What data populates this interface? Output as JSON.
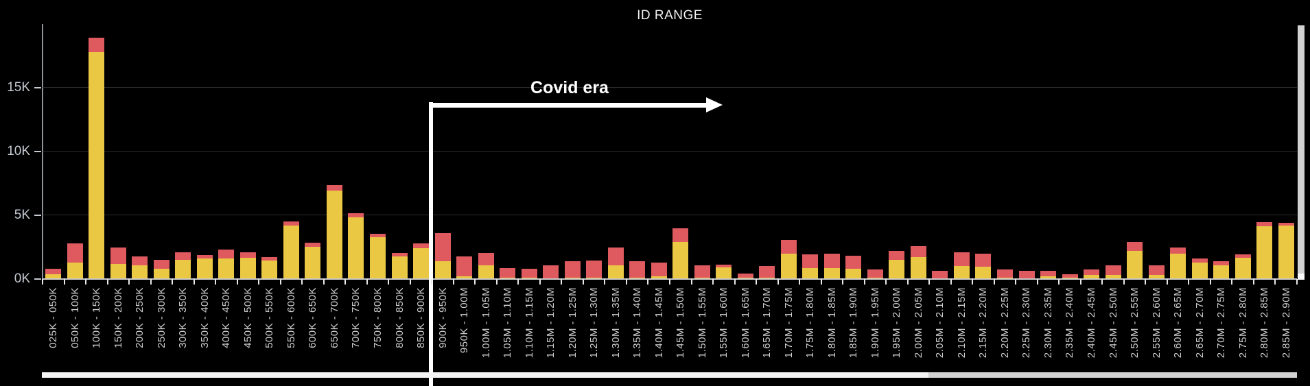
{
  "title": "ID RANGE",
  "annotation": {
    "label": "Covid era",
    "starts_at_category": "900K - 950K"
  },
  "y_axis": {
    "ticks": [
      {
        "label": "0K",
        "value": 0
      },
      {
        "label": "5K",
        "value": 5000
      },
      {
        "label": "10K",
        "value": 10000
      },
      {
        "label": "15K",
        "value": 15000
      }
    ]
  },
  "colors": {
    "background": "#000000",
    "bar_yellow": "#ebc844",
    "bar_red": "#df5a5f",
    "gridline": "#2e2e2e",
    "axis_line": "#c9c9c9",
    "tick": "#e8e8e8",
    "x_label": "#cfcfcf",
    "y_label": "#c6cad1",
    "annotation": "#ffffff",
    "scrollbar_thumb": "#f4f4f4",
    "scrollbar_track": "#d2d2d2"
  },
  "chart_data": {
    "type": "bar",
    "stacked": true,
    "title": "ID RANGE",
    "xlabel": "",
    "ylabel": "",
    "ylim": [
      0,
      20000
    ],
    "y_tick_labels": [
      "0K",
      "5K",
      "10K",
      "15K"
    ],
    "grid": true,
    "legend": "none",
    "annotation": {
      "text": "Covid era",
      "from_category": "900K - 950K",
      "direction": "right"
    },
    "categories": [
      "025K - 050K",
      "050K - 100K",
      "100K - 150K",
      "150K - 200K",
      "200K - 250K",
      "250K - 300K",
      "300K - 350K",
      "350K - 400K",
      "400K - 450K",
      "450K - 500K",
      "500K - 550K",
      "550K - 600K",
      "600K - 650K",
      "650K - 700K",
      "700K - 750K",
      "750K - 800K",
      "800K - 850K",
      "850K - 900K",
      "900K - 950K",
      "950K - 1.00M",
      "1.00M - 1.05M",
      "1.05M - 1.10M",
      "1.10M - 1.15M",
      "1.15M - 1.20M",
      "1.20M - 1.25M",
      "1.25M - 1.30M",
      "1.30M - 1.35M",
      "1.35M - 1.40M",
      "1.40M - 1.45M",
      "1.45M - 1.50M",
      "1.50M - 1.55M",
      "1.55M - 1.60M",
      "1.60M - 1.65M",
      "1.65M - 1.70M",
      "1.70M - 1.75M",
      "1.75M - 1.80M",
      "1.80M - 1.85M",
      "1.85M - 1.90M",
      "1.90M - 1.95M",
      "1.95M - 2.00M",
      "2.00M - 2.05M",
      "2.05M - 2.10M",
      "2.10M - 2.15M",
      "2.15M - 2.20M",
      "2.20M - 2.25M",
      "2.25M - 2.30M",
      "2.30M - 2.35M",
      "2.35M - 2.40M",
      "2.40M - 2.45M",
      "2.45M - 2.50M",
      "2.50M - 2.55M",
      "2.55M - 2.60M",
      "2.60M - 2.65M",
      "2.65M - 2.70M",
      "2.70M - 2.75M",
      "2.75M - 2.80M",
      "2.80M - 2.85M",
      "2.85M - 2.90M"
    ],
    "series": [
      {
        "name": "yellow",
        "color": "#ebc844",
        "values": [
          400,
          1300,
          17800,
          1200,
          1100,
          800,
          1500,
          1600,
          1600,
          1650,
          1450,
          4200,
          2550,
          6950,
          4850,
          3300,
          1800,
          2400,
          1400,
          200,
          1050,
          100,
          100,
          50,
          100,
          100,
          1100,
          100,
          200,
          2900,
          100,
          900,
          100,
          100,
          2000,
          850,
          850,
          800,
          100,
          1500,
          1700,
          50,
          1000,
          950,
          100,
          50,
          200,
          100,
          300,
          350,
          2200,
          350,
          2000,
          1300,
          1100,
          1650,
          4150,
          4200
        ]
      },
      {
        "name": "red",
        "color": "#df5a5f",
        "values": [
          400,
          1500,
          1100,
          1300,
          700,
          700,
          600,
          300,
          700,
          450,
          250,
          300,
          300,
          400,
          300,
          250,
          250,
          400,
          2200,
          1600,
          1000,
          750,
          700,
          1000,
          1300,
          1350,
          1400,
          1300,
          1100,
          1100,
          950,
          250,
          350,
          900,
          1050,
          1100,
          1150,
          1050,
          650,
          700,
          900,
          600,
          1100,
          1050,
          650,
          600,
          450,
          300,
          450,
          700,
          700,
          750,
          450,
          300,
          300,
          300,
          300,
          200
        ]
      }
    ]
  }
}
